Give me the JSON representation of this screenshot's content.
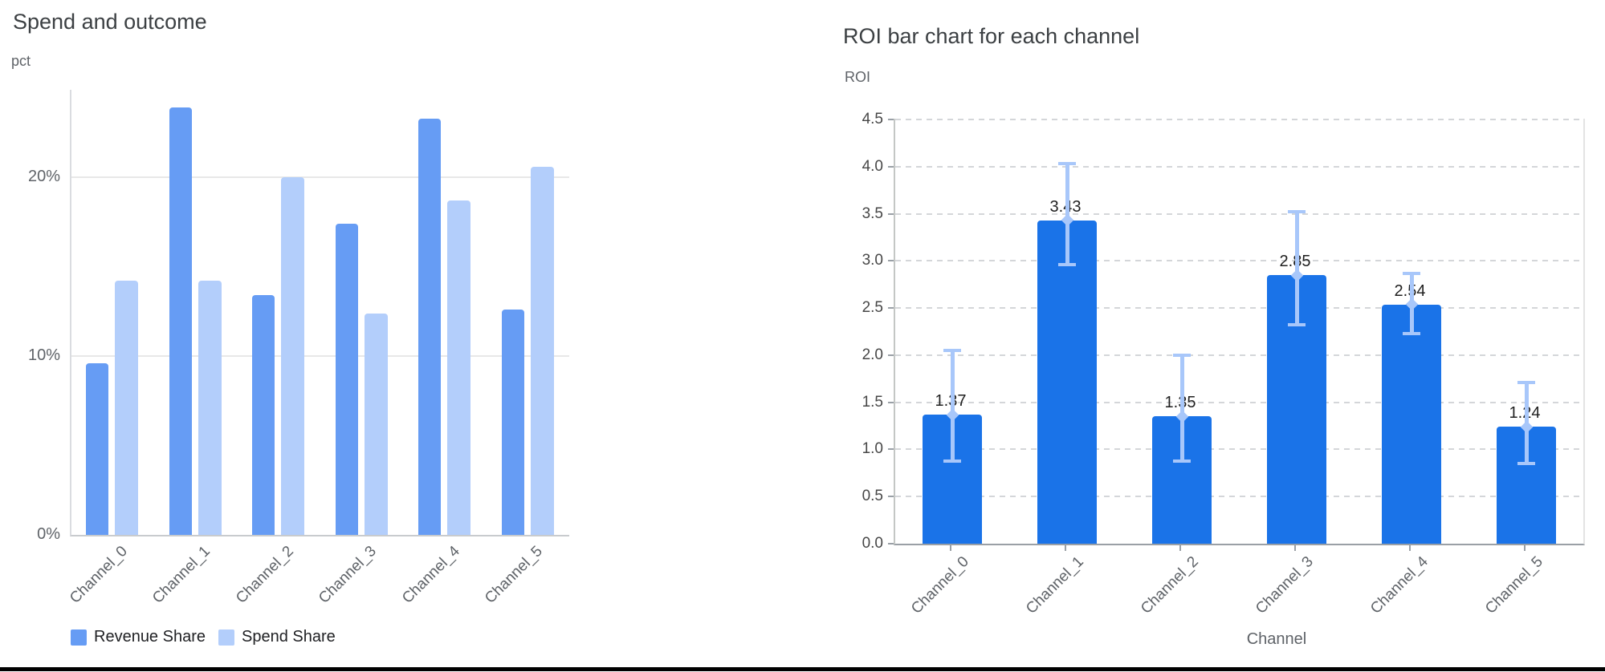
{
  "page": {
    "background": "#ffffff",
    "bottom_border_color": "#000000"
  },
  "chart_data": [
    {
      "type": "bar",
      "title": "Spend and outcome",
      "ylabel": "pct",
      "xlabel": "",
      "categories": [
        "Channel_0",
        "Channel_1",
        "Channel_2",
        "Channel_3",
        "Channel_4",
        "Channel_5"
      ],
      "series": [
        {
          "name": "Revenue Share",
          "color": "#669cf4",
          "values": [
            9.6,
            23.9,
            13.4,
            17.4,
            23.3,
            12.6
          ]
        },
        {
          "name": "Spend Share",
          "color": "#b3cefb",
          "values": [
            14.2,
            14.2,
            20.0,
            12.4,
            18.7,
            20.6
          ]
        }
      ],
      "y_ticks": [
        {
          "value": 0,
          "label": "0%"
        },
        {
          "value": 10,
          "label": "10%"
        },
        {
          "value": 20,
          "label": "20%"
        }
      ],
      "ylim": [
        0,
        24.9
      ],
      "grid": "solid",
      "legend_position": "bottom-left"
    },
    {
      "type": "bar",
      "title": "ROI bar chart for each channel",
      "ylabel": "ROI",
      "xlabel": "Channel",
      "categories": [
        "Channel_0",
        "Channel_1",
        "Channel_2",
        "Channel_3",
        "Channel_4",
        "Channel_5"
      ],
      "series": [
        {
          "name": "ROI",
          "color": "#1a73e8",
          "values": [
            1.37,
            3.43,
            1.35,
            2.85,
            2.54,
            1.24
          ]
        }
      ],
      "value_labels": [
        "1.37",
        "3.43",
        "1.35",
        "2.85",
        "2.54",
        "1.24"
      ],
      "error_bars": {
        "color": "#a8c7fa",
        "low": [
          0.88,
          2.96,
          0.88,
          2.32,
          2.23,
          0.85
        ],
        "high": [
          2.05,
          4.03,
          2.0,
          3.52,
          2.87,
          1.71
        ]
      },
      "y_ticks": [
        {
          "value": 0.0,
          "label": "0.0"
        },
        {
          "value": 0.5,
          "label": "0.5"
        },
        {
          "value": 1.0,
          "label": "1.0"
        },
        {
          "value": 1.5,
          "label": "1.5"
        },
        {
          "value": 2.0,
          "label": "2.0"
        },
        {
          "value": 2.5,
          "label": "2.5"
        },
        {
          "value": 3.0,
          "label": "3.0"
        },
        {
          "value": 3.5,
          "label": "3.5"
        },
        {
          "value": 4.0,
          "label": "4.0"
        },
        {
          "value": 4.5,
          "label": "4.5"
        }
      ],
      "ylim": [
        0,
        4.51
      ],
      "grid": "dashed",
      "legend_position": "none"
    }
  ]
}
